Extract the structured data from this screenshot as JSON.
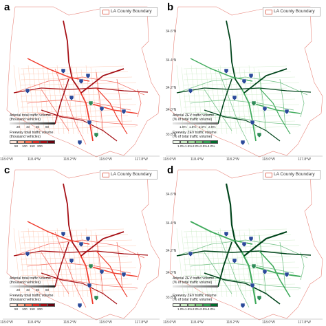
{
  "panels": [
    {
      "id": "a",
      "label": "a",
      "legend": "LA County Boundary",
      "scheme": "red",
      "arterial_title_1": "Arterial total traffic volume",
      "arterial_title_2": "(thousand vehicles)",
      "arterial_ticks": [
        "20",
        "40",
        "60",
        "80"
      ],
      "freeway_title_1": "Freeway total traffic volume",
      "freeway_title_2": "(thousand vehicles)",
      "freeway_ticks": [
        "50",
        "100",
        "150",
        "200"
      ],
      "x_ticks": [
        "118.6°W",
        "118.4°W",
        "118.2°W",
        "118.0°W",
        "117.8°W"
      ]
    },
    {
      "id": "b",
      "label": "b",
      "legend": "LA County Boundary",
      "scheme": "green",
      "arterial_title_1": "Arterial ZEV traffic volume",
      "arterial_title_2": "(% of total traffic volume)",
      "arterial_ticks": [
        "1.0%",
        "1.5%",
        "2.0%",
        "2.5%"
      ],
      "freeway_title_1": "Freeway ZEV traffic volume",
      "freeway_title_2": "(% of total traffic volume)",
      "freeway_ticks": [
        "1.0%",
        "1.5%",
        "2.0%",
        "2.5%",
        "4.0%"
      ],
      "x_ticks": [
        "118.6°W",
        "118.4°W",
        "118.2°W",
        "118.0°W",
        "117.8°W"
      ],
      "y_ticks": [
        "34.6°N",
        "34.4°N",
        "34.2°N",
        "34.0°N",
        "33.8°N"
      ]
    },
    {
      "id": "c",
      "label": "c",
      "legend": "LA County Boundary",
      "scheme": "red",
      "arterial_title_1": "Arterial total traffic volume",
      "arterial_title_2": "(thousand vehicles)",
      "arterial_ticks": [
        "20",
        "40",
        "60",
        "80"
      ],
      "freeway_title_1": "Freeway total traffic volume",
      "freeway_title_2": "(thousand vehicles)",
      "freeway_ticks": [
        "50",
        "100",
        "150",
        "200"
      ],
      "x_ticks": [
        "118.6°W",
        "118.4°W",
        "118.2°W",
        "118.0°W",
        "117.8°W"
      ]
    },
    {
      "id": "d",
      "label": "d",
      "legend": "LA County Boundary",
      "scheme": "green",
      "arterial_title_1": "Arterial ZEV traffic volume",
      "arterial_title_2": "(% of total traffic volume)",
      "arterial_ticks": [],
      "freeway_title_1": "Freeway ZEV traffic volume",
      "freeway_title_2": "(% of total traffic volume)",
      "freeway_ticks": [
        "1.0%",
        "1.5%",
        "2.0%",
        "2.5%",
        "4.0%"
      ],
      "x_ticks": [
        "118.6°W",
        "118.4°W",
        "118.2°W",
        "118.0°W",
        "117.8°W"
      ],
      "y_ticks": [
        "34.6°N",
        "34.4°N",
        "34.2°N",
        "34.0°N",
        "33.8°N"
      ]
    }
  ],
  "colors": {
    "red_dark": "#a50f15",
    "red_mid": "#ef3b2c",
    "red_light": "#fcbba1",
    "green_dark": "#00441b",
    "green_mid": "#41ab5d",
    "green_light": "#c7e9c0",
    "boundary": "#e8847a",
    "shield": "#2b4a9a"
  }
}
